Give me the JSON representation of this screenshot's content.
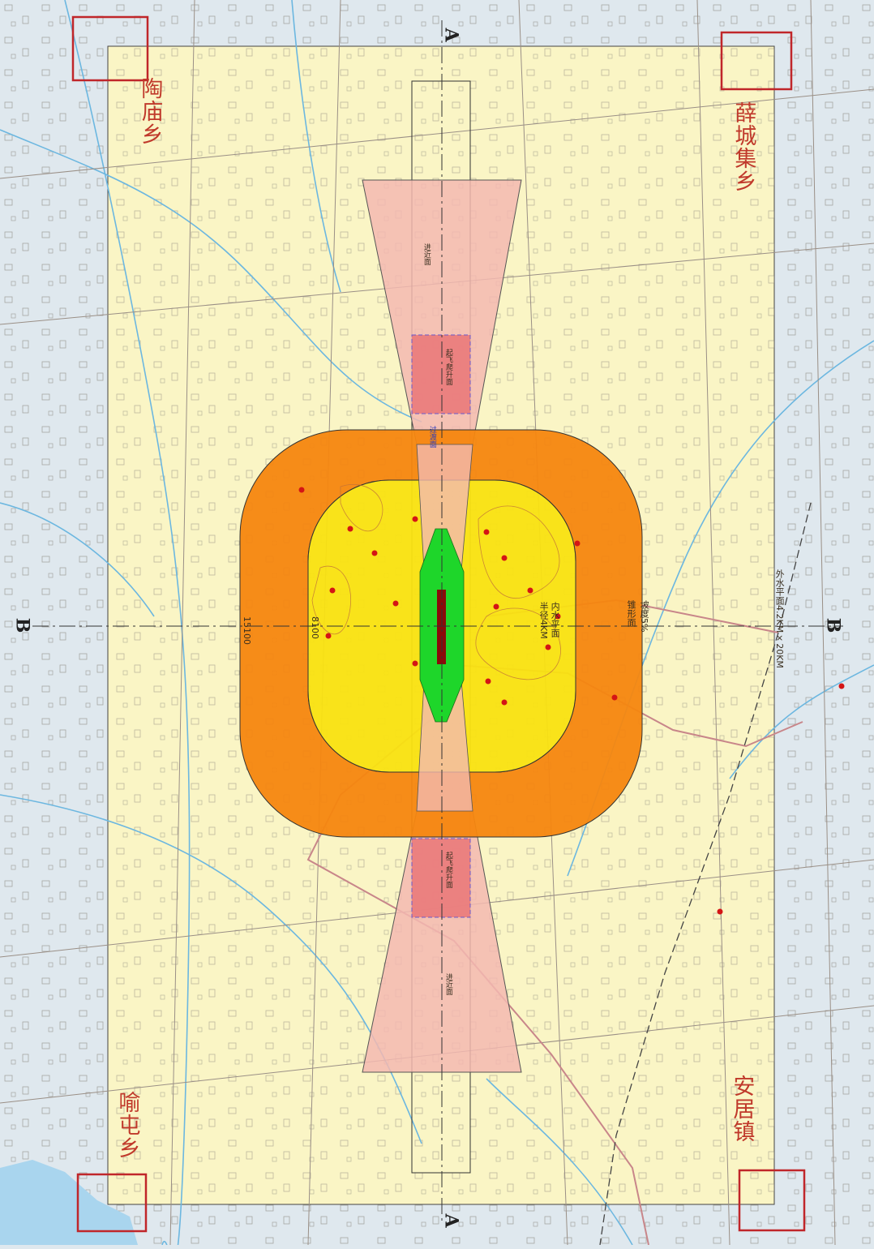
{
  "map": {
    "township_labels": {
      "top_left": "陶庙乡",
      "top_right": "薛城集乡",
      "bottom_left": "喻屯乡",
      "bottom_right": "安居镇"
    },
    "section_markers": {
      "top": "A",
      "bottom": "A",
      "left": "B",
      "right": "B"
    },
    "annotations": {
      "right_axis_note": "外水平面4.2KM×20KM",
      "inner_note_1": "内水平面",
      "inner_note_2": "半径4KM",
      "outer_note": "锥形面",
      "slope_note": "坡度5%",
      "left_dimension": "15100",
      "left_dimension_2": "8100",
      "takeoff_top": "起飞爬升面",
      "takeoff_bottom": "起飞爬升面",
      "approach_top": "进近面",
      "approach_bottom": "进近面",
      "transition_note": "过渡面"
    },
    "colors": {
      "base_zone": "#fbf6c2",
      "conical_surface": "#f5860f",
      "inner_horizontal": "#f9e211",
      "approach_funnel": "#f3b9b0",
      "takeoff_zone": "#ea7a7a",
      "strip_green": "#1ed62a",
      "runway": "#8b0a0a",
      "obstacle_marker": "#d41515",
      "frame_red": "#c0262a",
      "axis_line": "#333333",
      "background_map": "#dfe8ee",
      "river": "#6cb7e0",
      "road": "#9a8f86",
      "highway": "#c8868a"
    }
  }
}
